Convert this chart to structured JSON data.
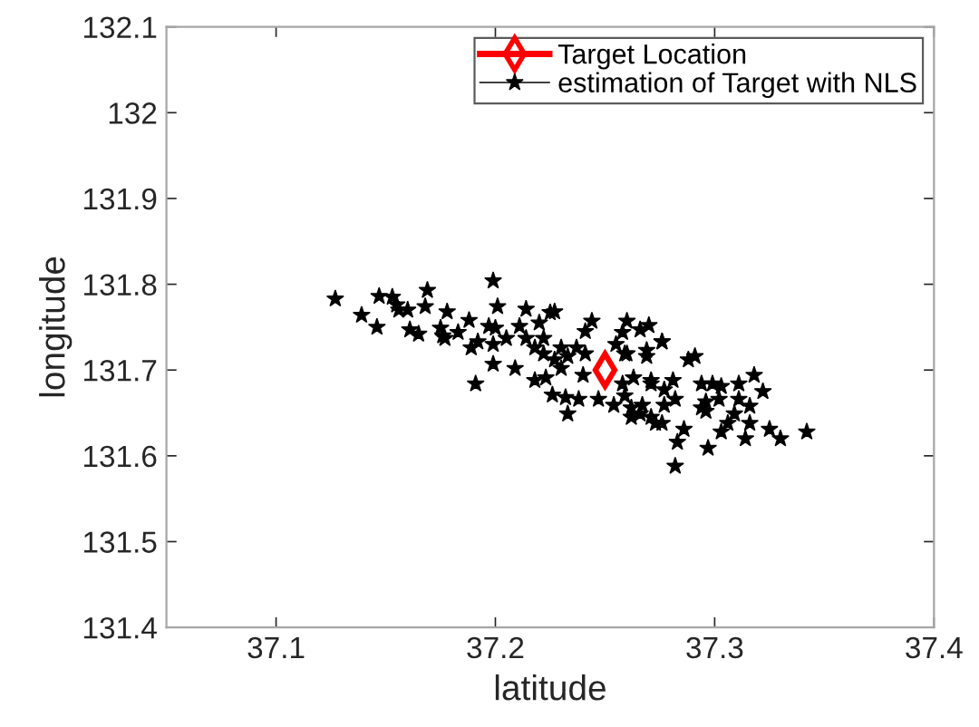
{
  "chart_data": {
    "type": "scatter",
    "xlabel": "latitude",
    "ylabel": "longitude",
    "xlim": [
      37.05,
      37.4
    ],
    "xticks": [
      37.1,
      37.2,
      37.3,
      37.4
    ],
    "ylim": [
      131.4,
      132.1
    ],
    "yticks": [
      131.4,
      131.5,
      131.6,
      131.7,
      131.8,
      131.9,
      132,
      132.1
    ],
    "grid": false,
    "legend": "top right",
    "series": [
      {
        "name": "Target Location",
        "color": "#ff0000",
        "marker": "diamond",
        "x": [
          37.25
        ],
        "values": [
          131.7
        ]
      },
      {
        "name": "estimation of Target with NLS",
        "color": "#000000",
        "marker": "star",
        "x": [
          37.127,
          37.139,
          37.146,
          37.147,
          37.153,
          37.155,
          37.156,
          37.16,
          37.168,
          37.169,
          37.161,
          37.165,
          37.175,
          37.177,
          37.178,
          37.199,
          37.201,
          37.214,
          37.225,
          37.227,
          37.188,
          37.197,
          37.2,
          37.211,
          37.22,
          37.244,
          37.241,
          37.26,
          37.27,
          37.276,
          37.176,
          37.183,
          37.189,
          37.192,
          37.199,
          37.205,
          37.214,
          37.218,
          37.222,
          37.23,
          37.237,
          37.255,
          37.26,
          37.269,
          37.222,
          37.227,
          37.233,
          37.241,
          37.199,
          37.209,
          37.191,
          37.218,
          37.223,
          37.226,
          37.232,
          37.238,
          37.247,
          37.254,
          37.233,
          37.258,
          37.263,
          37.262,
          37.266,
          37.271,
          37.276,
          37.271,
          37.277,
          37.24,
          37.23,
          37.258,
          37.266,
          37.276,
          37.259,
          37.269,
          37.288,
          37.291,
          37.271,
          37.281,
          37.294,
          37.299,
          37.303,
          37.311,
          37.318,
          37.322,
          37.296,
          37.302,
          37.311,
          37.316,
          37.259,
          37.267,
          37.277,
          37.282,
          37.262,
          37.273,
          37.286,
          37.294,
          37.296,
          37.309,
          37.306,
          37.303,
          37.316,
          37.314,
          37.325,
          37.33,
          37.342,
          37.283,
          37.297,
          37.282
        ],
        "values": [
          131.783,
          131.764,
          131.75,
          131.786,
          131.785,
          131.776,
          131.77,
          131.77,
          131.774,
          131.793,
          131.747,
          131.742,
          131.749,
          131.737,
          131.768,
          131.804,
          131.774,
          131.771,
          131.767,
          131.768,
          131.758,
          131.751,
          131.749,
          131.751,
          131.755,
          131.757,
          131.745,
          131.757,
          131.752,
          131.733,
          131.74,
          131.744,
          131.726,
          131.733,
          131.73,
          131.737,
          131.737,
          131.726,
          131.737,
          131.726,
          131.726,
          131.73,
          131.719,
          131.716,
          131.719,
          131.712,
          131.716,
          131.719,
          131.707,
          131.702,
          131.684,
          131.688,
          131.691,
          131.671,
          131.668,
          131.666,
          131.666,
          131.659,
          131.649,
          131.684,
          131.691,
          131.656,
          131.649,
          131.645,
          131.638,
          131.684,
          131.677,
          131.694,
          131.702,
          131.744,
          131.747,
          131.733,
          131.719,
          131.723,
          131.712,
          131.716,
          131.688,
          131.688,
          131.684,
          131.684,
          131.681,
          131.684,
          131.694,
          131.675,
          131.663,
          131.666,
          131.666,
          131.658,
          131.67,
          131.659,
          131.659,
          131.666,
          131.645,
          131.638,
          131.631,
          131.656,
          131.652,
          131.649,
          131.638,
          131.628,
          131.638,
          131.62,
          131.631,
          131.62,
          131.628,
          131.616,
          131.609,
          131.588
        ]
      }
    ]
  }
}
